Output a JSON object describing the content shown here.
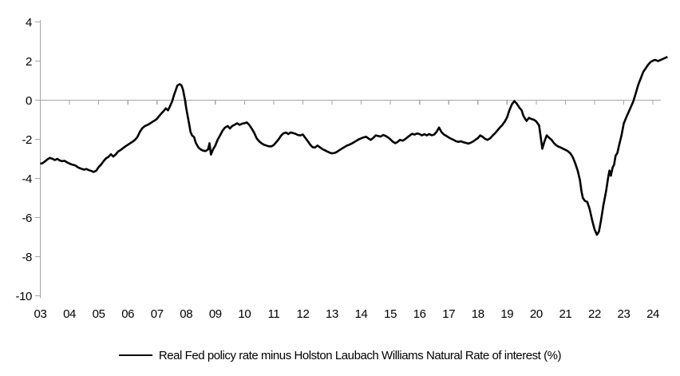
{
  "page": {
    "background": "#ffffff"
  },
  "chart_data": {
    "type": "line",
    "title": "",
    "xlabel": "",
    "ylabel": "",
    "legend_position": "bottom-center",
    "grid": "zero-line-only",
    "axis_color": "#a6a6a6",
    "background": "#ffffff",
    "ylim": [
      -10,
      4
    ],
    "xlim": [
      2003,
      2024.5
    ],
    "y_tick_values": [
      4,
      2,
      0,
      -2,
      -4,
      -6,
      -8,
      -10
    ],
    "y_tick_labels": [
      "4",
      "2",
      "0",
      "-2",
      "-4",
      "-6",
      "-8",
      "-10"
    ],
    "x_tick_years": [
      2003,
      2004,
      2005,
      2006,
      2007,
      2008,
      2009,
      2010,
      2011,
      2012,
      2013,
      2014,
      2015,
      2016,
      2017,
      2018,
      2019,
      2020,
      2021,
      2022,
      2023,
      2024
    ],
    "x_tick_labels": [
      "03",
      "04",
      "05",
      "06",
      "07",
      "08",
      "09",
      "10",
      "11",
      "12",
      "13",
      "14",
      "15",
      "16",
      "17",
      "18",
      "19",
      "20",
      "21",
      "22",
      "23",
      "24"
    ],
    "series": [
      {
        "name": "Real Fed policy rate minus Holston Laubach Williams Natural Rate of interest (%)",
        "color": "#000000",
        "line_width": 2.6,
        "points": [
          [
            2003.0,
            -3.25
          ],
          [
            2003.08,
            -3.22
          ],
          [
            2003.17,
            -3.12
          ],
          [
            2003.25,
            -3.02
          ],
          [
            2003.33,
            -2.95
          ],
          [
            2003.42,
            -3.0
          ],
          [
            2003.5,
            -3.06
          ],
          [
            2003.58,
            -3.0
          ],
          [
            2003.67,
            -3.08
          ],
          [
            2003.75,
            -3.12
          ],
          [
            2003.83,
            -3.1
          ],
          [
            2003.92,
            -3.18
          ],
          [
            2004.0,
            -3.24
          ],
          [
            2004.1,
            -3.3
          ],
          [
            2004.2,
            -3.34
          ],
          [
            2004.3,
            -3.44
          ],
          [
            2004.4,
            -3.5
          ],
          [
            2004.5,
            -3.55
          ],
          [
            2004.58,
            -3.52
          ],
          [
            2004.67,
            -3.58
          ],
          [
            2004.75,
            -3.62
          ],
          [
            2004.83,
            -3.67
          ],
          [
            2004.92,
            -3.6
          ],
          [
            2005.0,
            -3.42
          ],
          [
            2005.08,
            -3.3
          ],
          [
            2005.17,
            -3.12
          ],
          [
            2005.25,
            -2.98
          ],
          [
            2005.33,
            -2.9
          ],
          [
            2005.42,
            -2.76
          ],
          [
            2005.5,
            -2.88
          ],
          [
            2005.58,
            -2.78
          ],
          [
            2005.67,
            -2.62
          ],
          [
            2005.75,
            -2.55
          ],
          [
            2005.83,
            -2.46
          ],
          [
            2005.92,
            -2.36
          ],
          [
            2006.0,
            -2.28
          ],
          [
            2006.08,
            -2.2
          ],
          [
            2006.17,
            -2.12
          ],
          [
            2006.25,
            -2.02
          ],
          [
            2006.33,
            -1.88
          ],
          [
            2006.42,
            -1.6
          ],
          [
            2006.5,
            -1.43
          ],
          [
            2006.58,
            -1.33
          ],
          [
            2006.67,
            -1.27
          ],
          [
            2006.75,
            -1.2
          ],
          [
            2006.83,
            -1.12
          ],
          [
            2006.92,
            -1.04
          ],
          [
            2007.0,
            -0.95
          ],
          [
            2007.08,
            -0.8
          ],
          [
            2007.17,
            -0.65
          ],
          [
            2007.25,
            -0.52
          ],
          [
            2007.3,
            -0.42
          ],
          [
            2007.38,
            -0.52
          ],
          [
            2007.45,
            -0.3
          ],
          [
            2007.52,
            -0.06
          ],
          [
            2007.58,
            0.25
          ],
          [
            2007.65,
            0.55
          ],
          [
            2007.7,
            0.75
          ],
          [
            2007.78,
            0.82
          ],
          [
            2007.84,
            0.76
          ],
          [
            2007.89,
            0.55
          ],
          [
            2007.95,
            0.1
          ],
          [
            2008.0,
            -0.4
          ],
          [
            2008.05,
            -0.8
          ],
          [
            2008.1,
            -1.2
          ],
          [
            2008.15,
            -1.62
          ],
          [
            2008.2,
            -1.8
          ],
          [
            2008.27,
            -1.88
          ],
          [
            2008.33,
            -2.18
          ],
          [
            2008.42,
            -2.42
          ],
          [
            2008.5,
            -2.52
          ],
          [
            2008.58,
            -2.58
          ],
          [
            2008.67,
            -2.6
          ],
          [
            2008.75,
            -2.52
          ],
          [
            2008.8,
            -2.2
          ],
          [
            2008.85,
            -2.78
          ],
          [
            2008.92,
            -2.52
          ],
          [
            2009.0,
            -2.32
          ],
          [
            2009.08,
            -2.02
          ],
          [
            2009.17,
            -1.78
          ],
          [
            2009.25,
            -1.55
          ],
          [
            2009.33,
            -1.4
          ],
          [
            2009.42,
            -1.32
          ],
          [
            2009.5,
            -1.45
          ],
          [
            2009.58,
            -1.32
          ],
          [
            2009.67,
            -1.25
          ],
          [
            2009.75,
            -1.18
          ],
          [
            2009.83,
            -1.26
          ],
          [
            2009.92,
            -1.2
          ],
          [
            2010.0,
            -1.18
          ],
          [
            2010.08,
            -1.14
          ],
          [
            2010.17,
            -1.28
          ],
          [
            2010.25,
            -1.46
          ],
          [
            2010.33,
            -1.66
          ],
          [
            2010.42,
            -1.96
          ],
          [
            2010.5,
            -2.1
          ],
          [
            2010.58,
            -2.2
          ],
          [
            2010.67,
            -2.28
          ],
          [
            2010.75,
            -2.32
          ],
          [
            2010.83,
            -2.36
          ],
          [
            2010.92,
            -2.36
          ],
          [
            2011.0,
            -2.3
          ],
          [
            2011.08,
            -2.16
          ],
          [
            2011.17,
            -2.0
          ],
          [
            2011.25,
            -1.82
          ],
          [
            2011.33,
            -1.7
          ],
          [
            2011.42,
            -1.65
          ],
          [
            2011.5,
            -1.73
          ],
          [
            2011.58,
            -1.65
          ],
          [
            2011.67,
            -1.68
          ],
          [
            2011.75,
            -1.72
          ],
          [
            2011.83,
            -1.78
          ],
          [
            2011.92,
            -1.8
          ],
          [
            2012.0,
            -1.75
          ],
          [
            2012.08,
            -1.92
          ],
          [
            2012.17,
            -2.1
          ],
          [
            2012.25,
            -2.27
          ],
          [
            2012.33,
            -2.4
          ],
          [
            2012.42,
            -2.42
          ],
          [
            2012.5,
            -2.32
          ],
          [
            2012.58,
            -2.4
          ],
          [
            2012.67,
            -2.5
          ],
          [
            2012.75,
            -2.56
          ],
          [
            2012.83,
            -2.62
          ],
          [
            2012.92,
            -2.68
          ],
          [
            2013.0,
            -2.72
          ],
          [
            2013.08,
            -2.7
          ],
          [
            2013.17,
            -2.64
          ],
          [
            2013.25,
            -2.56
          ],
          [
            2013.33,
            -2.48
          ],
          [
            2013.42,
            -2.4
          ],
          [
            2013.5,
            -2.33
          ],
          [
            2013.58,
            -2.28
          ],
          [
            2013.67,
            -2.22
          ],
          [
            2013.75,
            -2.15
          ],
          [
            2013.83,
            -2.08
          ],
          [
            2013.92,
            -2.0
          ],
          [
            2014.0,
            -1.95
          ],
          [
            2014.08,
            -1.9
          ],
          [
            2014.17,
            -1.87
          ],
          [
            2014.25,
            -1.96
          ],
          [
            2014.33,
            -2.03
          ],
          [
            2014.42,
            -1.92
          ],
          [
            2014.5,
            -1.8
          ],
          [
            2014.58,
            -1.83
          ],
          [
            2014.67,
            -1.86
          ],
          [
            2014.75,
            -1.78
          ],
          [
            2014.83,
            -1.82
          ],
          [
            2014.92,
            -1.9
          ],
          [
            2015.0,
            -2.0
          ],
          [
            2015.08,
            -2.12
          ],
          [
            2015.17,
            -2.2
          ],
          [
            2015.25,
            -2.13
          ],
          [
            2015.33,
            -2.03
          ],
          [
            2015.42,
            -2.07
          ],
          [
            2015.5,
            -2.0
          ],
          [
            2015.58,
            -1.9
          ],
          [
            2015.67,
            -1.8
          ],
          [
            2015.75,
            -1.72
          ],
          [
            2015.83,
            -1.76
          ],
          [
            2015.92,
            -1.7
          ],
          [
            2016.0,
            -1.73
          ],
          [
            2016.08,
            -1.8
          ],
          [
            2016.17,
            -1.74
          ],
          [
            2016.25,
            -1.8
          ],
          [
            2016.33,
            -1.73
          ],
          [
            2016.42,
            -1.79
          ],
          [
            2016.5,
            -1.76
          ],
          [
            2016.58,
            -1.63
          ],
          [
            2016.67,
            -1.4
          ],
          [
            2016.75,
            -1.63
          ],
          [
            2016.83,
            -1.75
          ],
          [
            2016.92,
            -1.83
          ],
          [
            2017.0,
            -1.9
          ],
          [
            2017.08,
            -1.97
          ],
          [
            2017.17,
            -2.03
          ],
          [
            2017.25,
            -2.1
          ],
          [
            2017.33,
            -2.13
          ],
          [
            2017.42,
            -2.1
          ],
          [
            2017.5,
            -2.15
          ],
          [
            2017.58,
            -2.18
          ],
          [
            2017.67,
            -2.22
          ],
          [
            2017.75,
            -2.18
          ],
          [
            2017.83,
            -2.12
          ],
          [
            2017.92,
            -2.02
          ],
          [
            2018.0,
            -1.94
          ],
          [
            2018.08,
            -1.8
          ],
          [
            2018.17,
            -1.88
          ],
          [
            2018.25,
            -1.98
          ],
          [
            2018.33,
            -2.03
          ],
          [
            2018.42,
            -1.95
          ],
          [
            2018.5,
            -1.82
          ],
          [
            2018.58,
            -1.7
          ],
          [
            2018.67,
            -1.55
          ],
          [
            2018.75,
            -1.4
          ],
          [
            2018.83,
            -1.28
          ],
          [
            2018.92,
            -1.1
          ],
          [
            2019.0,
            -0.88
          ],
          [
            2019.08,
            -0.52
          ],
          [
            2019.17,
            -0.2
          ],
          [
            2019.25,
            -0.05
          ],
          [
            2019.33,
            -0.17
          ],
          [
            2019.42,
            -0.38
          ],
          [
            2019.5,
            -0.52
          ],
          [
            2019.56,
            -0.8
          ],
          [
            2019.62,
            -0.95
          ],
          [
            2019.67,
            -1.06
          ],
          [
            2019.75,
            -0.9
          ],
          [
            2019.83,
            -0.96
          ],
          [
            2019.92,
            -1.0
          ],
          [
            2020.0,
            -1.08
          ],
          [
            2020.1,
            -1.3
          ],
          [
            2020.16,
            -1.95
          ],
          [
            2020.21,
            -2.48
          ],
          [
            2020.28,
            -2.12
          ],
          [
            2020.36,
            -1.8
          ],
          [
            2020.44,
            -1.92
          ],
          [
            2020.52,
            -2.02
          ],
          [
            2020.6,
            -2.18
          ],
          [
            2020.68,
            -2.3
          ],
          [
            2020.76,
            -2.37
          ],
          [
            2020.84,
            -2.42
          ],
          [
            2020.92,
            -2.48
          ],
          [
            2021.0,
            -2.54
          ],
          [
            2021.08,
            -2.6
          ],
          [
            2021.17,
            -2.72
          ],
          [
            2021.25,
            -2.9
          ],
          [
            2021.33,
            -3.2
          ],
          [
            2021.42,
            -3.6
          ],
          [
            2021.5,
            -4.1
          ],
          [
            2021.55,
            -4.65
          ],
          [
            2021.6,
            -5.0
          ],
          [
            2021.67,
            -5.15
          ],
          [
            2021.75,
            -5.2
          ],
          [
            2021.83,
            -5.55
          ],
          [
            2021.92,
            -6.15
          ],
          [
            2022.0,
            -6.6
          ],
          [
            2022.08,
            -6.88
          ],
          [
            2022.15,
            -6.72
          ],
          [
            2022.22,
            -6.15
          ],
          [
            2022.3,
            -5.4
          ],
          [
            2022.4,
            -4.6
          ],
          [
            2022.46,
            -4.0
          ],
          [
            2022.51,
            -3.6
          ],
          [
            2022.56,
            -3.86
          ],
          [
            2022.62,
            -3.44
          ],
          [
            2022.67,
            -3.3
          ],
          [
            2022.72,
            -2.84
          ],
          [
            2022.78,
            -2.7
          ],
          [
            2022.85,
            -2.25
          ],
          [
            2022.92,
            -1.82
          ],
          [
            2023.0,
            -1.2
          ],
          [
            2023.08,
            -0.9
          ],
          [
            2023.17,
            -0.6
          ],
          [
            2023.25,
            -0.33
          ],
          [
            2023.33,
            -0.05
          ],
          [
            2023.42,
            0.4
          ],
          [
            2023.5,
            0.8
          ],
          [
            2023.58,
            1.1
          ],
          [
            2023.67,
            1.45
          ],
          [
            2023.75,
            1.62
          ],
          [
            2023.83,
            1.8
          ],
          [
            2023.92,
            1.95
          ],
          [
            2024.0,
            2.02
          ],
          [
            2024.08,
            2.06
          ],
          [
            2024.17,
            2.0
          ],
          [
            2024.25,
            2.05
          ],
          [
            2024.33,
            2.1
          ],
          [
            2024.42,
            2.16
          ],
          [
            2024.5,
            2.22
          ]
        ]
      }
    ]
  }
}
